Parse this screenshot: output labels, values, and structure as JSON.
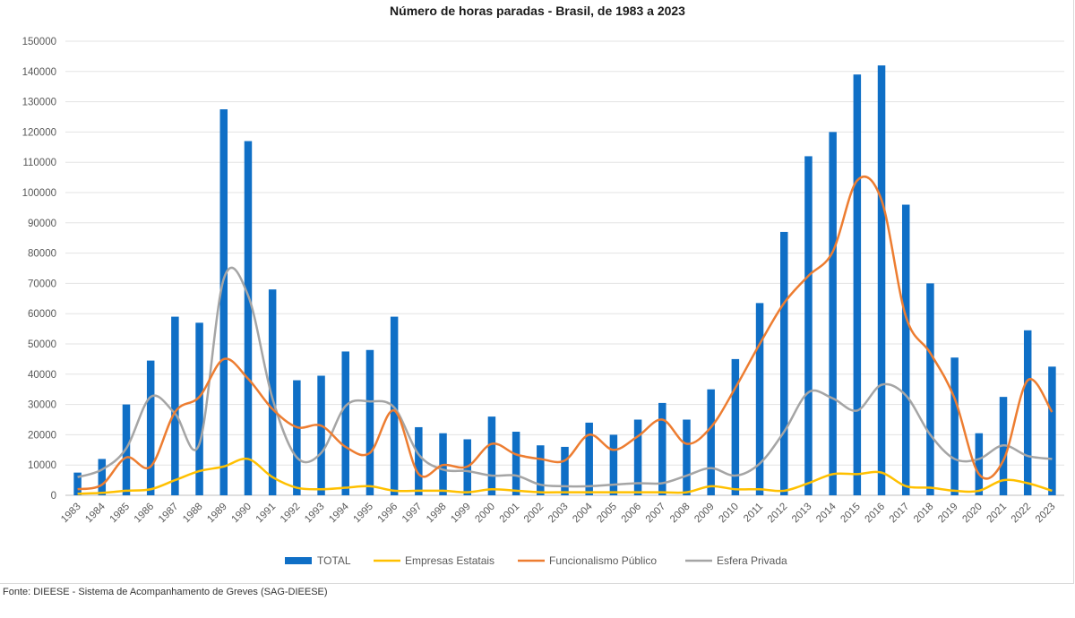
{
  "chart_data": {
    "type": "bar",
    "title": "Número de horas paradas - Brasil, de 1983 a 2023",
    "xlabel": "",
    "ylabel": "",
    "ylim": [
      0,
      150000
    ],
    "y_ticks": [
      "0",
      "10000",
      "20000",
      "30000",
      "40000",
      "50000",
      "60000",
      "70000",
      "80000",
      "90000",
      "100000",
      "110000",
      "120000",
      "130000",
      "140000",
      "150000"
    ],
    "grid": true,
    "legend_position": "bottom",
    "categories": [
      "1983",
      "1984",
      "1985",
      "1986",
      "1987",
      "1988",
      "1989",
      "1990",
      "1991",
      "1992",
      "1993",
      "1994",
      "1995",
      "1996",
      "1997",
      "1998",
      "1999",
      "2000",
      "2001",
      "2002",
      "2003",
      "2004",
      "2005",
      "2006",
      "2007",
      "2008",
      "2009",
      "2010",
      "2011",
      "2012",
      "2013",
      "2014",
      "2015",
      "2016",
      "2017",
      "2018",
      "2019",
      "2020",
      "2021",
      "2022",
      "2023"
    ],
    "series": [
      {
        "name": "TOTAL",
        "kind": "bar",
        "color": "#0f6fc6",
        "values": [
          7500,
          12000,
          30000,
          44500,
          59000,
          57000,
          127500,
          117000,
          68000,
          38000,
          39500,
          47500,
          48000,
          59000,
          22500,
          20500,
          18500,
          26000,
          21000,
          16500,
          16000,
          24000,
          20000,
          25000,
          30500,
          25000,
          35000,
          45000,
          63500,
          87000,
          112000,
          120000,
          139000,
          142000,
          96000,
          70000,
          45500,
          20500,
          32500,
          54500,
          42500
        ]
      },
      {
        "name": "Empresas Estatais",
        "kind": "line",
        "color": "#ffc000",
        "values": [
          500,
          800,
          1500,
          2000,
          5000,
          8000,
          9500,
          12000,
          6000,
          2500,
          2000,
          2500,
          3000,
          1500,
          1500,
          1500,
          1000,
          2000,
          1500,
          1000,
          1000,
          1000,
          1000,
          1000,
          1000,
          1000,
          3000,
          2000,
          2000,
          1500,
          4000,
          7000,
          7000,
          7500,
          3000,
          2500,
          1500,
          1500,
          5000,
          4000,
          1500
        ]
      },
      {
        "name": "Funcionalismo Público",
        "kind": "line",
        "color": "#ed7d31",
        "values": [
          2000,
          3500,
          12500,
          9500,
          27500,
          32500,
          45000,
          38500,
          28500,
          22500,
          23000,
          16000,
          14000,
          28000,
          7000,
          10000,
          9500,
          17000,
          13500,
          12000,
          11500,
          20000,
          15000,
          19500,
          25000,
          17000,
          22500,
          35500,
          50000,
          63500,
          72500,
          80500,
          104000,
          97500,
          59000,
          47000,
          32000,
          7000,
          11500,
          38000,
          27500
        ]
      },
      {
        "name": "Esfera Privada",
        "kind": "line",
        "color": "#a5a5a5",
        "values": [
          6000,
          8500,
          15500,
          32500,
          27000,
          17000,
          71500,
          66000,
          32000,
          12500,
          14000,
          29500,
          31000,
          29000,
          13500,
          8500,
          8000,
          6500,
          6500,
          3500,
          3000,
          3000,
          3500,
          4000,
          4000,
          6500,
          9000,
          6500,
          10500,
          21000,
          34000,
          32000,
          28000,
          36500,
          33000,
          20000,
          12000,
          12000,
          16500,
          13000,
          12000
        ]
      }
    ]
  },
  "source": "Fonte: DIEESE - Sistema de Acompanhamento de Greves (SAG-DIEESE)"
}
